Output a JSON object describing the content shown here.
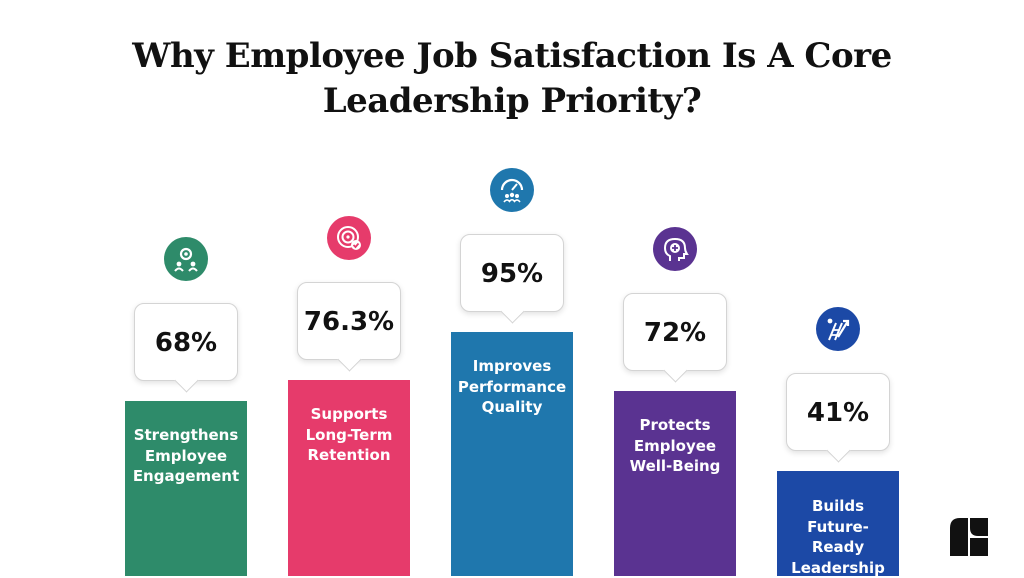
{
  "title": {
    "line1": "Why Employee Job Satisfaction Is A Core",
    "line2": "Leadership Priority?"
  },
  "chart_data": {
    "type": "bar",
    "title": "Why Employee Job Satisfaction Is A Core Leadership Priority?",
    "categories": [
      "Strengthens Employee Engagement",
      "Supports Long-Term Retention",
      "Improves Performance Quality",
      "Protects Employee Well-Being",
      "Builds Future-Ready Leadership"
    ],
    "values": [
      68,
      76.3,
      95,
      72,
      41
    ],
    "value_labels": [
      "68%",
      "76.3%",
      "95%",
      "72%",
      "41%"
    ],
    "label_lines": [
      [
        "Strengthens",
        "Employee",
        "Engagement"
      ],
      [
        "Supports",
        "Long-Term",
        "Retention"
      ],
      [
        "Improves",
        "Performance",
        "Quality"
      ],
      [
        "Protects",
        "Employee",
        "Well-Being"
      ],
      [
        "Builds",
        "Future-",
        "Ready",
        "Leadership"
      ]
    ],
    "colors": [
      "#2e8b6a",
      "#e63b6b",
      "#1f77ad",
      "#5a3391",
      "#1c49a6"
    ],
    "icons": [
      "team-gear-icon",
      "target-check-icon",
      "performance-gauge-icon",
      "mind-health-icon",
      "growth-ladder-icon"
    ],
    "ylim": [
      0,
      100
    ],
    "grid": false,
    "legend": "none"
  }
}
